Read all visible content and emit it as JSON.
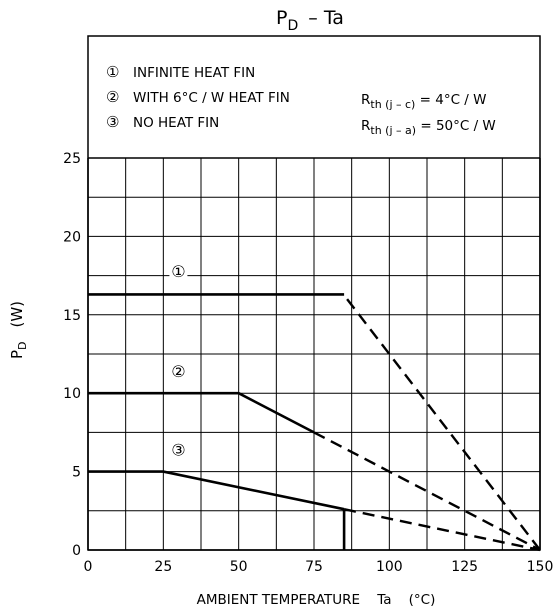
{
  "chart_data": {
    "type": "line",
    "title": {
      "main": "P",
      "sub": "D",
      "rest": "–  Ta"
    },
    "xlabel": "AMBIENT TEMPERATURE    Ta    (°C)",
    "ylabel": {
      "main": "P",
      "sub": "D",
      "rest": "(W)"
    },
    "xlim": [
      0,
      150
    ],
    "ylim": [
      0,
      25
    ],
    "x_ticks": [
      0,
      25,
      50,
      75,
      100,
      125,
      150
    ],
    "y_ticks": [
      0,
      5,
      10,
      15,
      20,
      25
    ],
    "grid": true,
    "legend": {
      "placement": "top-left",
      "items": [
        {
          "marker": "①",
          "text": "INFINITE HEAT FIN"
        },
        {
          "marker": "②",
          "text": "WITH 6°C / W HEAT FIN"
        },
        {
          "marker": "③",
          "text": "NO HEAT FIN"
        }
      ]
    },
    "notes": [
      {
        "main": "R",
        "sub": "th (j – c)",
        "rest": " = 4°C / W"
      },
      {
        "main": "R",
        "sub": "th (j – a)",
        "rest": " = 50°C / W"
      }
    ],
    "series": [
      {
        "marker": "①",
        "solid": [
          [
            0,
            16.3
          ],
          [
            85,
            16.3
          ]
        ],
        "dashed": [
          [
            86,
            16.0
          ],
          [
            150,
            0
          ]
        ]
      },
      {
        "marker": "②",
        "solid": [
          [
            0,
            10
          ],
          [
            50,
            10
          ],
          [
            75,
            7.5
          ]
        ],
        "dashed": [
          [
            75,
            7.5
          ],
          [
            150,
            0
          ]
        ]
      },
      {
        "marker": "③",
        "solid": [
          [
            0,
            5
          ],
          [
            25,
            5
          ],
          [
            85,
            2.6
          ]
        ],
        "dashed": [
          [
            85,
            2.6
          ],
          [
            150,
            0
          ]
        ],
        "vertical_drop": [
          [
            85,
            2.6
          ],
          [
            85,
            0
          ]
        ]
      }
    ],
    "series_labels": [
      {
        "marker": "①",
        "x": 30,
        "y": 17.8
      },
      {
        "marker": "②",
        "x": 30,
        "y": 11.4
      },
      {
        "marker": "③",
        "x": 30,
        "y": 6.4
      }
    ]
  }
}
